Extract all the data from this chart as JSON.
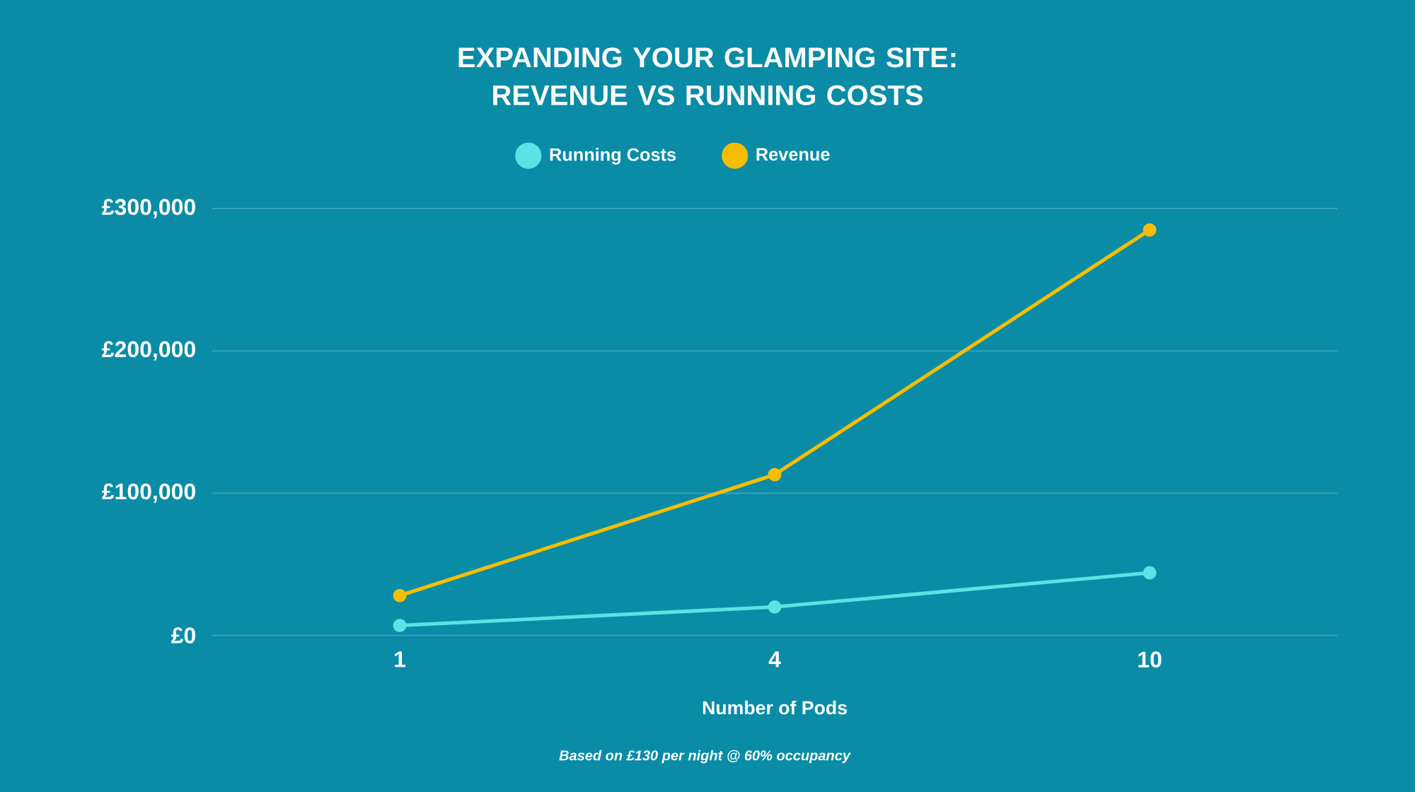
{
  "chart_data": {
    "type": "line",
    "title": "EXPANDING YOUR GLAMPING SITE: REVENUE VS RUNNING COSTS",
    "xlabel": "Number of Pods",
    "annotations": [
      "Based on £130 per night @ 60% occupancy"
    ],
    "categories": [
      "1",
      "4",
      "10"
    ],
    "series": [
      {
        "name": "Running Costs",
        "color": "#5ce1e6",
        "values": [
          7000,
          20000,
          44000
        ]
      },
      {
        "name": "Revenue",
        "color": "#f5be00",
        "values": [
          28000,
          113000,
          285000
        ]
      }
    ],
    "ylim": [
      0,
      300000
    ],
    "yticks": [
      {
        "value": 0,
        "label": "£0"
      },
      {
        "value": 100000,
        "label": "£100,000"
      },
      {
        "value": 200000,
        "label": "£200,000"
      },
      {
        "value": 300000,
        "label": "£300,000"
      }
    ],
    "grid": "y",
    "legend": "top",
    "marker": "circle",
    "line_style": "solid"
  }
}
